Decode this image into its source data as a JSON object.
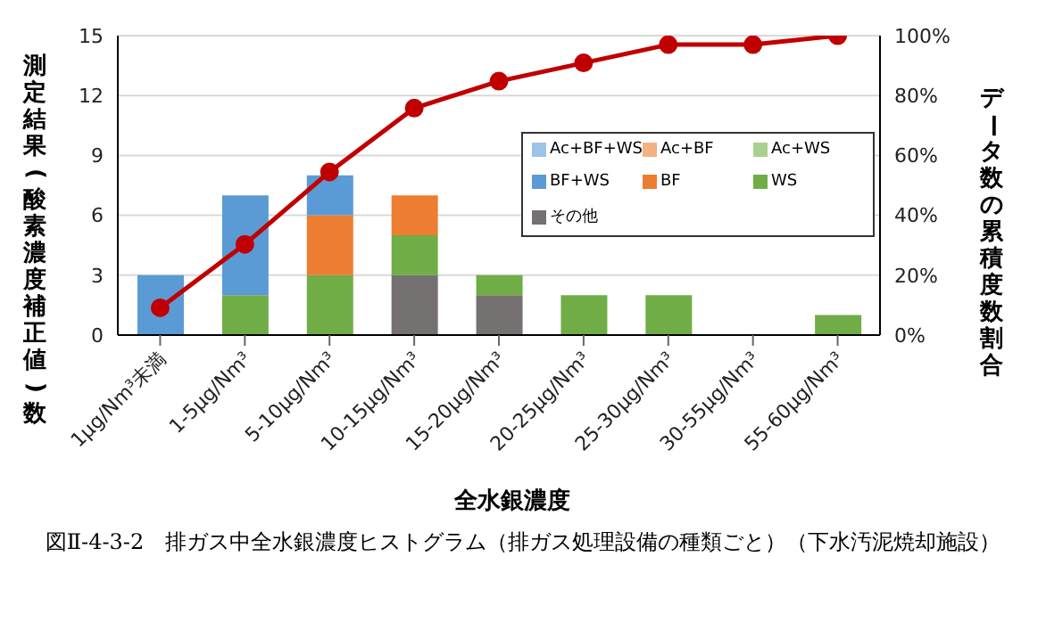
{
  "chart_data": {
    "type": "bar",
    "title": "図Ⅱ-4-3-2　排ガス中全水銀濃度ヒストグラム（排ガス処理設備の種類ごと）（下水汚泥焼却施設）",
    "xlabel": "全水銀濃度",
    "ylabel": "測定結果(酸素濃度補正値)数",
    "y2label": "データ数の累積度数割合",
    "categories": [
      "1µg/Nm³未満",
      "1-5µg/Nm³",
      "5-10µg/Nm³",
      "10-15µg/Nm³",
      "15-20µg/Nm³",
      "20-25µg/Nm³",
      "25-30µg/Nm³",
      "30-55µg/Nm³",
      "55-60µg/Nm³"
    ],
    "stacked": true,
    "series": [
      {
        "name": "その他",
        "color": "#767171",
        "values": [
          0,
          0,
          0,
          3,
          2,
          0,
          0,
          0,
          0
        ]
      },
      {
        "name": "WS",
        "color": "#70ad47",
        "values": [
          0,
          2,
          3,
          2,
          1,
          2,
          2,
          0,
          1
        ]
      },
      {
        "name": "BF",
        "color": "#ed7d31",
        "values": [
          0,
          0,
          3,
          2,
          0,
          0,
          0,
          0,
          0
        ]
      },
      {
        "name": "BF+WS",
        "color": "#5b9bd5",
        "values": [
          3,
          5,
          2,
          0,
          0,
          0,
          0,
          0,
          0
        ]
      },
      {
        "name": "Ac+WS",
        "color": "#a9d18e",
        "values": [
          0,
          0,
          0,
          0,
          0,
          0,
          0,
          0,
          0
        ]
      },
      {
        "name": "Ac+BF",
        "color": "#f4b183",
        "values": [
          0,
          0,
          0,
          0,
          0,
          0,
          0,
          0,
          0
        ]
      },
      {
        "name": "Ac+BF+WS",
        "color": "#9dc3e6",
        "values": [
          0,
          0,
          0,
          0,
          0,
          0,
          0,
          0,
          0
        ]
      },
      {
        "type": "line",
        "axis": "y2",
        "color": "#c00000",
        "marker": "circle",
        "values": [
          9.1,
          30.3,
          54.5,
          75.8,
          84.8,
          90.9,
          97.0,
          97.0,
          100
        ]
      }
    ],
    "ylim": [
      0,
      15
    ],
    "yticks": [
      0,
      3,
      6,
      9,
      12,
      15
    ],
    "y2lim": [
      0,
      100
    ],
    "y2ticks": [
      {
        "value": 0,
        "label": "0%"
      },
      {
        "value": 20,
        "label": "20%"
      },
      {
        "value": 40,
        "label": "40%"
      },
      {
        "value": 60,
        "label": "60%"
      },
      {
        "value": 80,
        "label": "80%"
      },
      {
        "value": 100,
        "label": "100%"
      }
    ],
    "grid": "y",
    "legend": "right"
  }
}
